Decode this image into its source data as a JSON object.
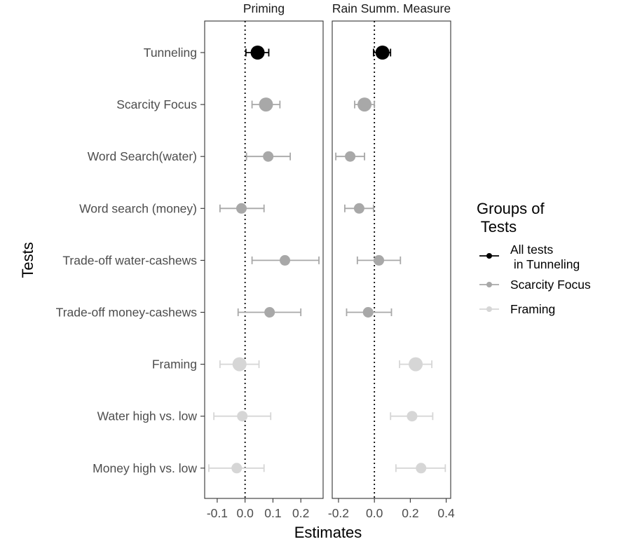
{
  "chart_data": {
    "type": "forest-plot",
    "xlabel": "Estimates",
    "ylabel": "Tests",
    "categories": [
      "Tunneling",
      "Scarcity Focus",
      "Word Search(water)",
      "Word search (money)",
      "Trade-off water-cashews",
      "Trade-off money-cashews",
      "Framing",
      "Water high vs. low",
      "Money high vs. low"
    ],
    "legend": {
      "title_line1": "Groups of",
      "title_line2": " Tests",
      "entries": [
        {
          "line1": "All tests",
          "line2": " in Tunneling",
          "color": "#000000"
        },
        {
          "line1": "Scarcity Focus",
          "line2": "",
          "color": "#a8a8a8"
        },
        {
          "line1": "Framing",
          "line2": "",
          "color": "#d6d6d6"
        }
      ]
    },
    "group_colors": {
      "tunneling": "#000000",
      "scarcity": "#a8a8a8",
      "framing": "#d6d6d6"
    },
    "panels": [
      {
        "title": "Priming",
        "xlim": [
          -0.145,
          0.28
        ],
        "ticks": [
          -0.1,
          0.0,
          0.1,
          0.2
        ],
        "tick_labels": [
          "-0.1",
          "0.0",
          "0.1",
          "0.2"
        ],
        "points": [
          {
            "test": "Tunneling",
            "group": "tunneling",
            "summary": true,
            "estimate": 0.045,
            "lo": 0.003,
            "hi": 0.085
          },
          {
            "test": "Scarcity Focus",
            "group": "scarcity",
            "summary": true,
            "estimate": 0.075,
            "lo": 0.025,
            "hi": 0.125
          },
          {
            "test": "Word Search(water)",
            "group": "scarcity",
            "summary": false,
            "estimate": 0.083,
            "lo": 0.005,
            "hi": 0.162
          },
          {
            "test": "Word search (money)",
            "group": "scarcity",
            "summary": false,
            "estimate": -0.013,
            "lo": -0.09,
            "hi": 0.068
          },
          {
            "test": "Trade-off water-cashews",
            "group": "scarcity",
            "summary": false,
            "estimate": 0.143,
            "lo": 0.025,
            "hi": 0.265
          },
          {
            "test": "Trade-off money-cashews",
            "group": "scarcity",
            "summary": false,
            "estimate": 0.088,
            "lo": -0.025,
            "hi": 0.2
          },
          {
            "test": "Framing",
            "group": "framing",
            "summary": true,
            "estimate": -0.02,
            "lo": -0.09,
            "hi": 0.05
          },
          {
            "test": "Water high vs. low",
            "group": "framing",
            "summary": false,
            "estimate": -0.01,
            "lo": -0.112,
            "hi": 0.092
          },
          {
            "test": "Money high vs. low",
            "group": "framing",
            "summary": false,
            "estimate": -0.03,
            "lo": -0.13,
            "hi": 0.068
          }
        ]
      },
      {
        "title": "Rain Summ. Measure",
        "xlim": [
          -0.235,
          0.425
        ],
        "ticks": [
          -0.2,
          0.0,
          0.2,
          0.4
        ],
        "tick_labels": [
          "-0.2",
          "0.0",
          "0.2",
          "0.4"
        ],
        "points": [
          {
            "test": "Tunneling",
            "group": "tunneling",
            "summary": true,
            "estimate": 0.045,
            "lo": -0.005,
            "hi": 0.09
          },
          {
            "test": "Scarcity Focus",
            "group": "scarcity",
            "summary": true,
            "estimate": -0.055,
            "lo": -0.11,
            "hi": 0.0
          },
          {
            "test": "Word Search(water)",
            "group": "scarcity",
            "summary": false,
            "estimate": -0.135,
            "lo": -0.215,
            "hi": -0.055
          },
          {
            "test": "Word search (money)",
            "group": "scarcity",
            "summary": false,
            "estimate": -0.085,
            "lo": -0.165,
            "hi": -0.005
          },
          {
            "test": "Trade-off water-cashews",
            "group": "scarcity",
            "summary": false,
            "estimate": 0.025,
            "lo": -0.095,
            "hi": 0.145
          },
          {
            "test": "Trade-off money-cashews",
            "group": "scarcity",
            "summary": false,
            "estimate": -0.035,
            "lo": -0.155,
            "hi": 0.095
          },
          {
            "test": "Framing",
            "group": "framing",
            "summary": true,
            "estimate": 0.23,
            "lo": 0.14,
            "hi": 0.32
          },
          {
            "test": "Water high vs. low",
            "group": "framing",
            "summary": false,
            "estimate": 0.21,
            "lo": 0.09,
            "hi": 0.325
          },
          {
            "test": "Money high vs. low",
            "group": "framing",
            "summary": false,
            "estimate": 0.26,
            "lo": 0.12,
            "hi": 0.395
          }
        ]
      }
    ]
  }
}
